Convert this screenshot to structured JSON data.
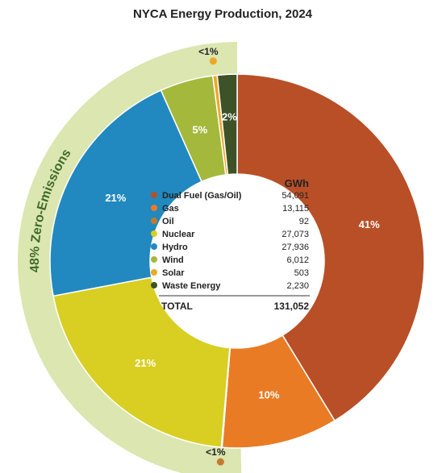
{
  "chart_data": {
    "type": "pie",
    "title": "NYCA Energy Production, 2024",
    "unit_header": "GWh",
    "categories": [
      "Dual Fuel (Gas/Oil)",
      "Gas",
      "Oil",
      "Nuclear",
      "Hydro",
      "Wind",
      "Solar",
      "Waste Energy"
    ],
    "values": [
      54091,
      13115,
      92,
      27073,
      27936,
      6012,
      503,
      2230
    ],
    "value_labels": [
      "54,091",
      "13,115",
      "92",
      "27,073",
      "27,936",
      "6,012",
      "503",
      "2,230"
    ],
    "percent_labels": [
      "41%",
      "10%",
      "<1%",
      "21%",
      "21%",
      "5%",
      "<1%",
      "2%"
    ],
    "colors": [
      "#b84f27",
      "#ea7b25",
      "#c47a2c",
      "#d8cf22",
      "#2189bf",
      "#a4b83c",
      "#eea726",
      "#3d5226"
    ],
    "total_label": "TOTAL",
    "total_value": "131,052",
    "band_label": "48%  Zero-Emissions",
    "band_color": "#dbe6b0",
    "legend_placement": "center"
  }
}
